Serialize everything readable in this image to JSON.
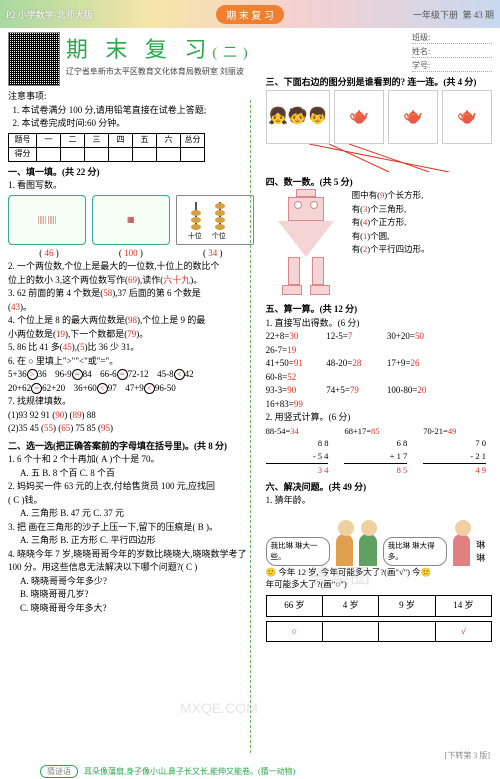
{
  "topbar": {
    "left": "P2 小学数学·北师大版",
    "mid": "期 末 复 习",
    "grade": "一年级下册",
    "issue": "第 43 期"
  },
  "header": {
    "title": "期 末 复 习",
    "titleSuffix": "(二)",
    "subtitle": "辽宁省阜新市太平区教育文化体育局教研室 刘丽波",
    "class": "班级:",
    "name": "姓名:",
    "id": "学号:"
  },
  "notice": {
    "head": "注意事项:",
    "l1": "1. 本试卷满分 100 分,请用铅笔直接在试卷上答题;",
    "l2": "2. 本试卷完成时间:60 分钟。"
  },
  "scoreHdr": [
    "题号",
    "一",
    "二",
    "三",
    "四",
    "五",
    "六",
    "总分"
  ],
  "scoreRow": "得分",
  "s1": {
    "head": "一、填一填。(共 22 分)",
    "q1": "1. 看图写数。",
    "a1": "46",
    "a2": "100",
    "a3": "34",
    "q2a": "2. 一个两位数,个位上是最大的一位数,十位上的数比个",
    "q2b": "位上的数小 3,这个两位数写作(",
    "q2ans1": "69",
    "q2c": "),读作(",
    "q2ans2": "六十九",
    "q2d": ")。",
    "q3a": "3. 62 前面的第 4 个数是(",
    "q3ans1": "58",
    "q3b": "),37 后面的第 6 个数是",
    "q3c": "(",
    "q3ans2": "43",
    "q3d": ")。",
    "q4a": "4. 个位上是 8 的最大两位数是(",
    "q4ans1": "98",
    "q4b": "),个位上是 9 的最",
    "q4c": "小两位数是(",
    "q4ans2": "19",
    "q4d": "),下一个数都是(",
    "q4ans3": "79",
    "q4e": ")。",
    "q5a": "5. 86 比 41 多(",
    "q5ans1": "45",
    "q5b": "),(",
    "q5ans2": "5",
    "q5c": ")比 36 少 31。",
    "q6": "6. 在 ○ 里填上\">\"\"<\"或\"=\"。",
    "cmp": [
      {
        "l": "5+36",
        "s": ">",
        "r": "36"
      },
      {
        "l": "96-9",
        "s": "=",
        "r": "84"
      },
      {
        "l": "66-6",
        "s": "=",
        "r": "72-12"
      },
      {
        "l": "45-8",
        "s": "<",
        "r": "42"
      },
      {
        "l": "20+62",
        "s": "=",
        "r": "62+20"
      },
      {
        "l": "36+60",
        "s": "<",
        "r": "97"
      },
      {
        "l": "47+9",
        "s": "<",
        "r": "96-50"
      }
    ],
    "q7": "7. 找规律填数。",
    "seq1a": "(1)93 92 91 (",
    "seq1ans1": "90",
    "seq1b": ") (",
    "seq1ans2": "89",
    "seq1c": ") 88",
    "seq2a": "(2)35 45 (",
    "seq2ans1": "55",
    "seq2b": ") (",
    "seq2ans2": "65",
    "seq2c": ") 75 85 (",
    "seq2ans3": "95",
    "seq2d": ")"
  },
  "s2": {
    "head": "二、选一选(把正确答案前的字母填在括号里)。(共 8 分)",
    "q1": "1. 6 个十和 2 个十再加(  A  )个十是 70。",
    "q1o": "A. 五       B. 8 个百       C. 8 个百",
    "q2a": "2. 妈妈买一件 63 元的上衣,付给售货员 100 元,应找回",
    "q2b": "(  C  )钱。",
    "q2o": "A. 三角形   B. 47 元   C. 37 元",
    "q3a": "3. 把      画在三角形的沙子上压一下,留下的压痕是(  B  )。",
    "q3o": "A. 三角形   B. 正方形   C. 平行四边形",
    "q4a": "4. 晓晓今年 7 岁,晓晓哥哥今年的岁数比晓晓大,晓晓数学考了",
    "q4b": "100 分。用这些信息无法解决以下哪个问题?(  C  )",
    "q4oA": "A. 晓晓哥哥今年多少?",
    "q4oB": "B. 晓晓哥哥几岁?",
    "q4oC": "C. 晓晓哥哥今年多大?"
  },
  "s3": {
    "head": "三、下面右边的图分别是谁看到的? 连一连。(共 4 分)"
  },
  "s4": {
    "head": "四、数一数。(共 5 分)",
    "l1a": "图中有(",
    "l1v": "9",
    "l1b": ")个长方形,",
    "l2a": "有(",
    "l2v": "3",
    "l2b": ")个三角形,",
    "l3a": "有(",
    "l3v": "4",
    "l3b": ")个正方形,",
    "l4a": "有(",
    "l4v": "1",
    "l4b": ")个圆,",
    "l5a": "有(",
    "l5v": "2",
    "l5b": ")个平行四边形。"
  },
  "s5": {
    "head": "五、算一算。(共 12 分)",
    "sub1": "1. 直接写出得数。(6 分)",
    "r1": [
      [
        "22+8=",
        "30"
      ],
      [
        "12-5=",
        "7"
      ],
      [
        "30+20=",
        "50"
      ],
      [
        "26-7=",
        "19"
      ]
    ],
    "r2": [
      [
        "41+50=",
        "91"
      ],
      [
        "48-20=",
        "28"
      ],
      [
        "17+9=",
        "26"
      ],
      [
        "60-8=",
        "52"
      ]
    ],
    "r3": [
      [
        "93-3=",
        "90"
      ],
      [
        "74+5=",
        "79"
      ],
      [
        "100-80=",
        "20"
      ],
      [
        "16+83=",
        "99"
      ]
    ],
    "sub2": "2. 用竖式计算。(6 分)",
    "v": [
      {
        "top": "88-54=",
        "ans": "34",
        "a": "8 8",
        "b": "- 5 4",
        "c": "3 4"
      },
      {
        "top": "68+17=",
        "ans": "85",
        "a": "6 8",
        "b": "+ 1 7",
        "c": "8 5"
      },
      {
        "top": "70-21=",
        "ans": "49",
        "a": "7 0",
        "b": "- 2 1",
        "c": "4 9"
      }
    ]
  },
  "s6": {
    "head": "六、解决问题。(共 49 分)",
    "q1": "1. 猜年龄。",
    "bub1": "我比琳\n琳大一些。",
    "bub2": "我比琳\n琳大得多。",
    "name": "琳琳",
    "q1q": "   今年 12 岁,   今年可能多大了?(画\"√\")  今",
    "q1q2": "年可能多大了?(画\"○\")",
    "ages": [
      "66 岁",
      "4 岁",
      "9 岁",
      "14 岁"
    ],
    "marks": [
      "○",
      "",
      "",
      "√"
    ]
  },
  "riddle": {
    "label": "猜谜语",
    "text": "耳朵像蒲扇,身子像小山,鼻子长又长,能伸又能卷。(猜一动物)"
  },
  "turn": "[下转第 3 版]",
  "wm1": "答案圈",
  "wm2": "MXQE.COM"
}
